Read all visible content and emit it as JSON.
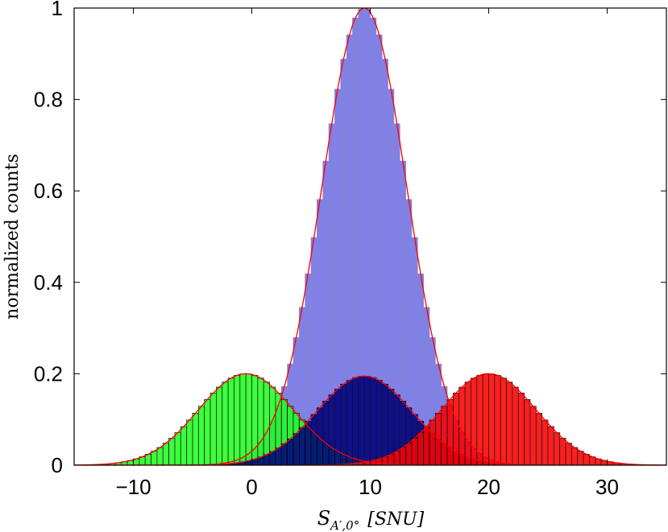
{
  "chart_data": {
    "type": "bar",
    "title": "",
    "xlabel_base": "S",
    "xlabel_sub": "A′,0°",
    "xlabel_unit": "[SNU]",
    "ylabel": "normalized counts",
    "xlim": [
      -15,
      35
    ],
    "ylim": [
      0,
      1
    ],
    "xticks": [
      -10,
      0,
      10,
      20,
      30
    ],
    "xtick_labels": [
      "−10",
      "0",
      "10",
      "20",
      "30"
    ],
    "yticks": [
      0,
      0.2,
      0.4,
      0.6,
      0.8,
      1
    ],
    "ytick_labels": [
      "0",
      "0.2",
      "0.4",
      "0.6",
      "0.8",
      "1"
    ],
    "grid": false,
    "legend": "none",
    "bin_width": 0.5,
    "fit_color": "#ff0000",
    "series": [
      {
        "distribution": "gaussian",
        "mean": 9.5,
        "sd": 3.6,
        "peak": 1.0,
        "range": [
          -8,
          28
        ],
        "fill": "#8080e8",
        "edge": "#8a8ab8"
      },
      {
        "distribution": "gaussian",
        "mean": -0.5,
        "sd": 4.0,
        "peak": 0.2,
        "range": [
          -15,
          15
        ],
        "fill": "#22ff22",
        "edge": "#000000"
      },
      {
        "distribution": "gaussian",
        "mean": 9.5,
        "sd": 4.0,
        "peak": 0.195,
        "range": [
          -5,
          24
        ],
        "fill": "#000080",
        "edge": "#000000"
      },
      {
        "distribution": "gaussian",
        "mean": 20.0,
        "sd": 4.0,
        "peak": 0.2,
        "range": [
          5,
          35
        ],
        "fill": "#ff0000",
        "edge": "#000000"
      }
    ]
  }
}
